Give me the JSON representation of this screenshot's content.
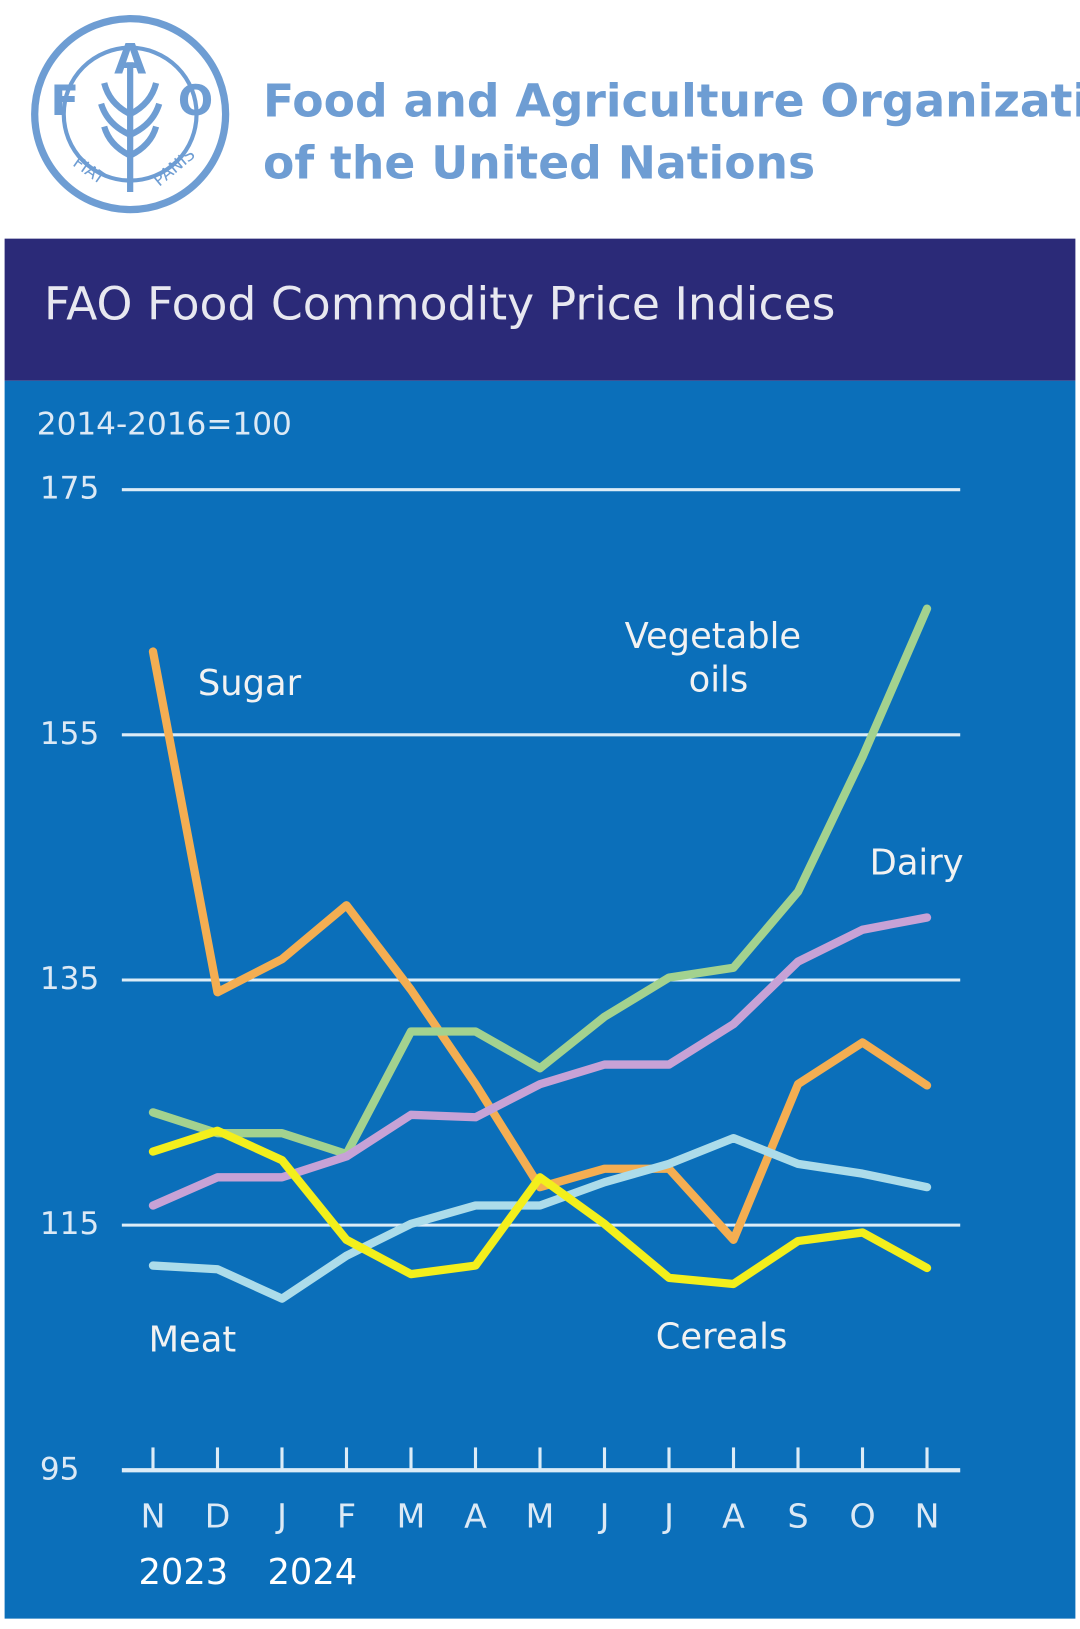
{
  "header": {
    "org_line1": "Food and Agriculture Organization",
    "org_line2": "of the United Nations",
    "logo_letters": [
      "F",
      "A",
      "O"
    ],
    "logo_motto": [
      "FIAT",
      "PANIS"
    ]
  },
  "chart_data": {
    "type": "line",
    "title": "FAO Food Commodity Price Indices",
    "y_label": "2014-2016=100",
    "categories": [
      "N",
      "D",
      "J",
      "F",
      "M",
      "A",
      "M",
      "J",
      "J",
      "A",
      "S",
      "O",
      "N"
    ],
    "year_labels": [
      "2023",
      null,
      "2024",
      null,
      null,
      null,
      null,
      null,
      null,
      null,
      null,
      null,
      null
    ],
    "ylim": [
      95,
      175
    ],
    "yticks": [
      95,
      115,
      135,
      155,
      175
    ],
    "grid": true,
    "series": [
      {
        "name": "Sugar",
        "color": "#f4ae52",
        "values": [
          161.8,
          134.0,
          136.7,
          141.1,
          134.2,
          126.5,
          118.1,
          119.6,
          119.6,
          113.8,
          126.5,
          129.9,
          126.4
        ]
      },
      {
        "name": "Vegetable oils",
        "color": "#a3d28f",
        "values": [
          124.2,
          122.5,
          122.5,
          120.8,
          130.8,
          130.8,
          127.8,
          132.0,
          135.2,
          136.0,
          142.2,
          153.2,
          165.3
        ]
      },
      {
        "name": "Dairy",
        "color": "#c7a2d6",
        "values": [
          116.6,
          118.9,
          118.9,
          120.6,
          124.0,
          123.8,
          126.5,
          128.1,
          128.1,
          131.4,
          136.5,
          139.1,
          140.1
        ]
      },
      {
        "name": "Meat",
        "color": "#acdcea",
        "values": [
          111.7,
          111.4,
          109.0,
          112.5,
          115.1,
          116.6,
          116.6,
          118.5,
          120.0,
          122.1,
          120.0,
          119.2,
          118.1
        ]
      },
      {
        "name": "Cereals",
        "color": "#f3ef1c",
        "values": [
          121.0,
          122.7,
          120.3,
          113.8,
          111.0,
          111.7,
          118.9,
          115.1,
          110.7,
          110.2,
          113.7,
          114.4,
          111.5
        ]
      }
    ]
  }
}
